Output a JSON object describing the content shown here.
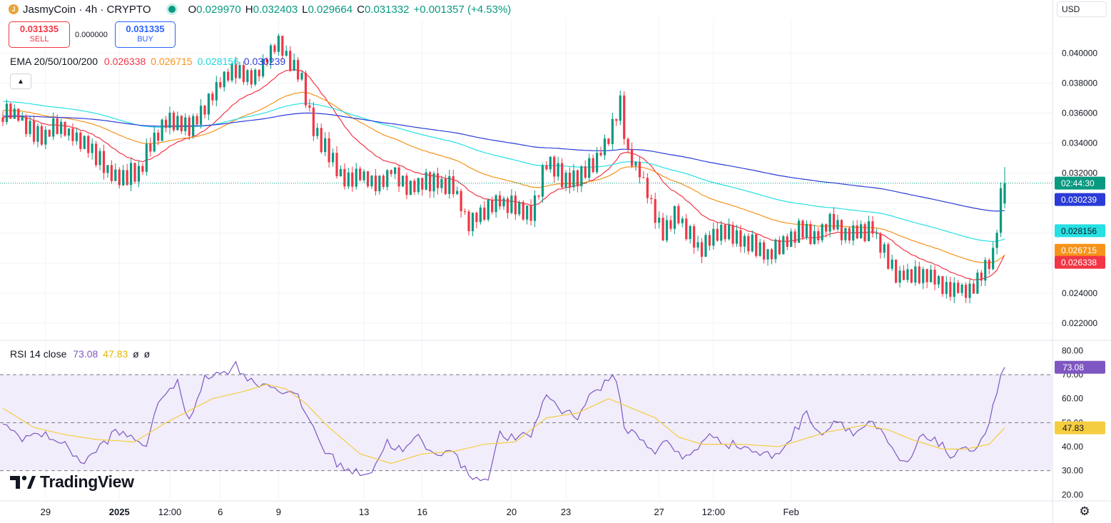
{
  "header": {
    "symbol_title": "JasmyCoin · 4h · CRYPTO",
    "coin_icon_glyph": " ",
    "ohlc": [
      {
        "key": "O",
        "value": "0.029970"
      },
      {
        "key": "H",
        "value": "0.032403"
      },
      {
        "key": "L",
        "value": "0.029664"
      },
      {
        "key": "C",
        "value": "0.031332"
      }
    ],
    "change": "+0.001357 (+4.53%)"
  },
  "trade": {
    "sell_price": "0.031335",
    "sell_label": "SELL",
    "spread": "0.000000",
    "buy_price": "0.031335",
    "buy_label": "BUY"
  },
  "currency": "USD",
  "logo_text": "TradingView",
  "ema_legend": {
    "title": "EMA 20/50/100/200",
    "values": [
      "0.026338",
      "0.026715",
      "0.028156",
      "0.030239"
    ]
  },
  "rsi_legend": {
    "title": "RSI 14 close",
    "values": [
      "73.08",
      "47.83",
      "ø",
      "ø"
    ]
  },
  "colors": {
    "up": "#089981",
    "down": "#f23645",
    "ema20": "#f23645",
    "ema50": "#f7931a",
    "ema100": "#26e0e4",
    "ema200": "#2a3bd8",
    "rsi": "#7e57c2",
    "rsi_ma": "#f5cd41",
    "rsi_band": "#f1edfb"
  },
  "chart_data": [
    {
      "type": "candlestick",
      "title": "JasmyCoin · 4h · CRYPTO",
      "x_ticks": [
        "29",
        "2025",
        "12:00",
        "6",
        "9",
        "13",
        "16",
        "20",
        "23",
        "27",
        "12:00",
        "Feb"
      ],
      "y_ticks": [
        "0.022000",
        "0.024000",
        "0.026000",
        "0.028000",
        "0.030000",
        "0.032000",
        "0.034000",
        "0.036000",
        "0.038000",
        "0.040000"
      ],
      "ylim": [
        0.0209,
        0.0423
      ],
      "last_price": 0.031332,
      "price_tags": [
        {
          "text": "02:44:30",
          "value": 0.031332,
          "color": "#089981"
        },
        {
          "text": "0.030239",
          "value": 0.030239,
          "color": "#2a3bd8"
        },
        {
          "text": "0.028156",
          "value": 0.028156,
          "color": "#26e0e4"
        },
        {
          "text": "0.026715",
          "value": 0.026715,
          "color": "#f7931a"
        },
        {
          "text": "0.026338",
          "value": 0.026338,
          "color": "#f23645"
        }
      ],
      "close_anchors": [
        [
          0,
          0.0357
        ],
        [
          2,
          0.0363
        ],
        [
          6,
          0.0352
        ],
        [
          10,
          0.0343
        ],
        [
          14,
          0.0353
        ],
        [
          18,
          0.0345
        ],
        [
          22,
          0.034
        ],
        [
          27,
          0.032
        ],
        [
          31,
          0.0318
        ],
        [
          35,
          0.0322
        ],
        [
          39,
          0.0344
        ],
        [
          43,
          0.0357
        ],
        [
          48,
          0.035
        ],
        [
          52,
          0.0363
        ],
        [
          56,
          0.038
        ],
        [
          60,
          0.039
        ],
        [
          64,
          0.0382
        ],
        [
          68,
          0.0397
        ],
        [
          71,
          0.0408
        ],
        [
          74,
          0.0394
        ],
        [
          77,
          0.0383
        ],
        [
          80,
          0.0349
        ],
        [
          84,
          0.0332
        ],
        [
          88,
          0.0315
        ],
        [
          92,
          0.0319
        ],
        [
          96,
          0.0311
        ],
        [
          100,
          0.0322
        ],
        [
          104,
          0.0311
        ],
        [
          108,
          0.0315
        ],
        [
          112,
          0.0314
        ],
        [
          116,
          0.031
        ],
        [
          120,
          0.0285
        ],
        [
          124,
          0.0295
        ],
        [
          128,
          0.0301
        ],
        [
          132,
          0.0299
        ],
        [
          136,
          0.0292
        ],
        [
          140,
          0.0329
        ],
        [
          144,
          0.0317
        ],
        [
          148,
          0.0316
        ],
        [
          152,
          0.0327
        ],
        [
          156,
          0.0343
        ],
        [
          159,
          0.0365
        ],
        [
          161,
          0.0331
        ],
        [
          164,
          0.0321
        ],
        [
          167,
          0.0299
        ],
        [
          170,
          0.028
        ],
        [
          173,
          0.0294
        ],
        [
          176,
          0.0283
        ],
        [
          179,
          0.0268
        ],
        [
          182,
          0.0276
        ],
        [
          185,
          0.0282
        ],
        [
          189,
          0.0278
        ],
        [
          193,
          0.0273
        ],
        [
          197,
          0.0266
        ],
        [
          201,
          0.0272
        ],
        [
          205,
          0.0283
        ],
        [
          209,
          0.0278
        ],
        [
          213,
          0.0287
        ],
        [
          217,
          0.028
        ],
        [
          221,
          0.0279
        ],
        [
          224,
          0.0283
        ],
        [
          227,
          0.0266
        ],
        [
          230,
          0.0251
        ],
        [
          234,
          0.0252
        ],
        [
          238,
          0.0253
        ],
        [
          242,
          0.0245
        ],
        [
          246,
          0.0243
        ],
        [
          249,
          0.024
        ],
        [
          252,
          0.0251
        ],
        [
          255,
          0.0264
        ],
        [
          257,
          0.0305
        ],
        [
          258,
          0.0313
        ]
      ],
      "rsi": {
        "ylim": [
          18,
          84
        ],
        "y_ticks": [
          "20.00",
          "30.00",
          "40.00",
          "50.00",
          "60.00",
          "70.00",
          "80.00"
        ],
        "band": [
          30,
          70
        ],
        "mid": 50,
        "series": [
          {
            "name": "RSI 14 close",
            "last": 73.08
          },
          {
            "name": "RSI MA",
            "last": 47.83
          }
        ],
        "rsi_anchors": [
          [
            0,
            49
          ],
          [
            5,
            44
          ],
          [
            9,
            45
          ],
          [
            13,
            44
          ],
          [
            17,
            39
          ],
          [
            21,
            33
          ],
          [
            25,
            40
          ],
          [
            29,
            46
          ],
          [
            33,
            44
          ],
          [
            37,
            41
          ],
          [
            41,
            62
          ],
          [
            45,
            66
          ],
          [
            48,
            50
          ],
          [
            52,
            70
          ],
          [
            56,
            70
          ],
          [
            60,
            74
          ],
          [
            64,
            67
          ],
          [
            68,
            66
          ],
          [
            71,
            64
          ],
          [
            73,
            63
          ],
          [
            76,
            60
          ],
          [
            80,
            48
          ],
          [
            83,
            38
          ],
          [
            87,
            32
          ],
          [
            91,
            29
          ],
          [
            95,
            30
          ],
          [
            99,
            42
          ],
          [
            103,
            38
          ],
          [
            107,
            44
          ],
          [
            111,
            36
          ],
          [
            115,
            40
          ],
          [
            119,
            30
          ],
          [
            123,
            26
          ],
          [
            125,
            28
          ],
          [
            128,
            45
          ],
          [
            132,
            43
          ],
          [
            136,
            45
          ],
          [
            140,
            62
          ],
          [
            144,
            55
          ],
          [
            148,
            53
          ],
          [
            152,
            63
          ],
          [
            156,
            67
          ],
          [
            158,
            69
          ],
          [
            160,
            48
          ],
          [
            164,
            44
          ],
          [
            168,
            38
          ],
          [
            171,
            42
          ],
          [
            175,
            35
          ],
          [
            179,
            40
          ],
          [
            183,
            45
          ],
          [
            187,
            41
          ],
          [
            191,
            40
          ],
          [
            195,
            37
          ],
          [
            199,
            36
          ],
          [
            203,
            44
          ],
          [
            207,
            54
          ],
          [
            211,
            45
          ],
          [
            215,
            52
          ],
          [
            219,
            45
          ],
          [
            223,
            50
          ],
          [
            226,
            46
          ],
          [
            230,
            36
          ],
          [
            233,
            32
          ],
          [
            236,
            43
          ],
          [
            240,
            44
          ],
          [
            244,
            36
          ],
          [
            248,
            38
          ],
          [
            251,
            41
          ],
          [
            253,
            46
          ],
          [
            255,
            56
          ],
          [
            257,
            70
          ],
          [
            258,
            73.08
          ]
        ],
        "ma_anchors": [
          [
            0,
            56
          ],
          [
            8,
            48
          ],
          [
            16,
            45
          ],
          [
            24,
            43
          ],
          [
            34,
            42
          ],
          [
            42,
            50
          ],
          [
            48,
            55
          ],
          [
            54,
            60
          ],
          [
            62,
            63
          ],
          [
            68,
            66
          ],
          [
            73,
            64
          ],
          [
            78,
            58
          ],
          [
            84,
            48
          ],
          [
            92,
            37
          ],
          [
            100,
            33
          ],
          [
            108,
            37
          ],
          [
            116,
            38
          ],
          [
            124,
            41
          ],
          [
            132,
            42
          ],
          [
            140,
            52
          ],
          [
            148,
            54
          ],
          [
            156,
            60
          ],
          [
            162,
            56
          ],
          [
            168,
            52
          ],
          [
            174,
            44
          ],
          [
            180,
            41
          ],
          [
            190,
            41
          ],
          [
            200,
            40
          ],
          [
            206,
            43
          ],
          [
            212,
            46
          ],
          [
            222,
            49
          ],
          [
            228,
            47
          ],
          [
            234,
            43
          ],
          [
            242,
            39
          ],
          [
            248,
            39
          ],
          [
            254,
            41
          ],
          [
            258,
            47.83
          ]
        ]
      }
    }
  ]
}
